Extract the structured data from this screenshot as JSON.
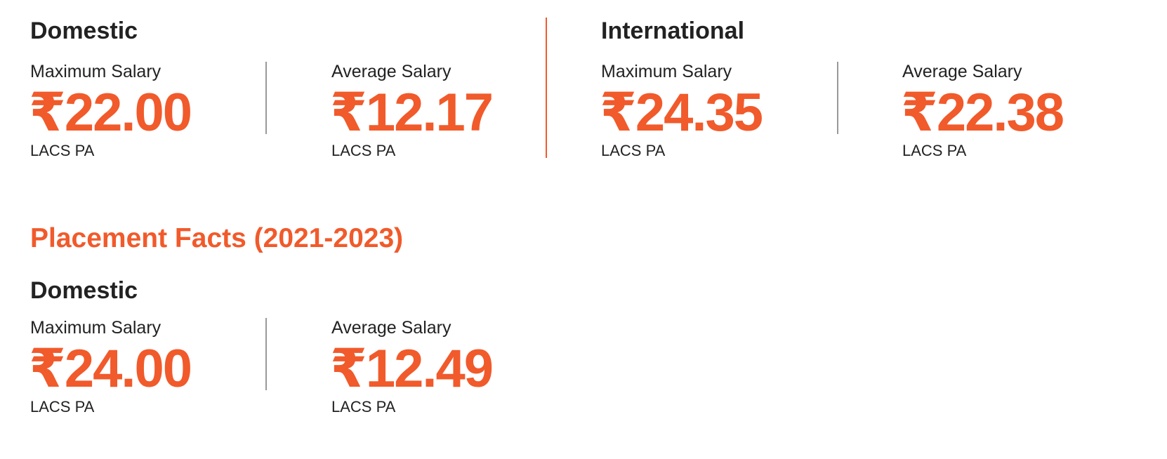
{
  "sections": [
    {
      "groups": [
        {
          "title": "Domestic",
          "stats": [
            {
              "label": "Maximum Salary",
              "value": "₹22.00",
              "unit": "LACS PA"
            },
            {
              "label": "Average Salary",
              "value": "₹12.17",
              "unit": "LACS PA"
            }
          ]
        },
        {
          "title": "International",
          "stats": [
            {
              "label": "Maximum Salary",
              "value": "₹24.35",
              "unit": "LACS PA"
            },
            {
              "label": "Average Salary",
              "value": "₹22.38",
              "unit": "LACS PA"
            }
          ]
        }
      ]
    },
    {
      "heading": "Placement Facts (2021-2023)",
      "groups": [
        {
          "title": "Domestic",
          "stats": [
            {
              "label": "Maximum Salary",
              "value": "₹24.00",
              "unit": "LACS PA"
            },
            {
              "label": "Average Salary",
              "value": "₹12.49",
              "unit": "LACS PA"
            }
          ]
        }
      ]
    }
  ]
}
